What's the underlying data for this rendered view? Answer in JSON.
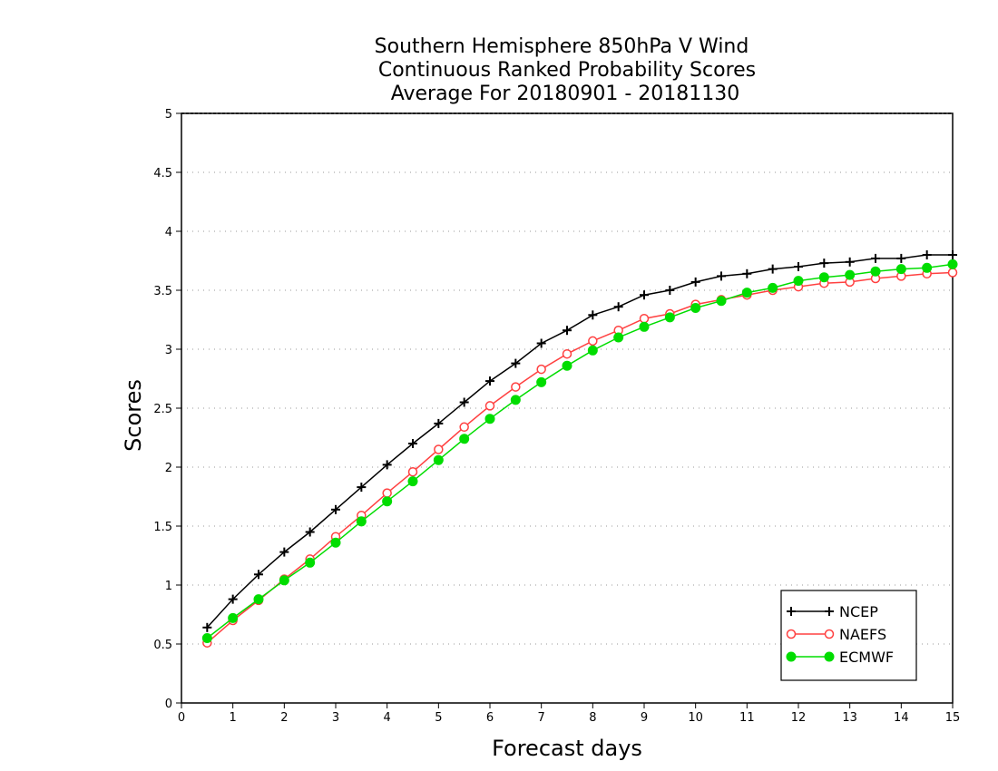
{
  "chart_data": {
    "type": "line",
    "title_lines": [
      "Southern Hemisphere 850hPa V Wind",
      "Continuous Ranked Probability Scores",
      "Average For 20180901 - 20181130"
    ],
    "xlabel": "Forecast days",
    "ylabel": "Scores",
    "xlim": [
      0,
      15
    ],
    "ylim": [
      0,
      5
    ],
    "x_ticks": [
      0,
      1,
      2,
      3,
      4,
      5,
      6,
      7,
      8,
      9,
      10,
      11,
      12,
      13,
      14,
      15
    ],
    "y_ticks": [
      0,
      0.5,
      1,
      1.5,
      2,
      2.5,
      3,
      3.5,
      4,
      4.5,
      5
    ],
    "grid": "horizontal dotted",
    "legend_position": "bottom-right",
    "x": [
      0.5,
      1,
      1.5,
      2,
      2.5,
      3,
      3.5,
      4,
      4.5,
      5,
      5.5,
      6,
      6.5,
      7,
      7.5,
      8,
      8.5,
      9,
      9.5,
      10,
      10.5,
      11,
      11.5,
      12,
      12.5,
      13,
      13.5,
      14,
      14.5,
      15
    ],
    "series": [
      {
        "name": "NCEP",
        "color": "#000000",
        "marker": "plus",
        "values": [
          0.64,
          0.88,
          1.09,
          1.28,
          1.45,
          1.64,
          1.83,
          2.02,
          2.2,
          2.37,
          2.55,
          2.73,
          2.88,
          3.05,
          3.16,
          3.29,
          3.36,
          3.46,
          3.5,
          3.57,
          3.62,
          3.64,
          3.68,
          3.7,
          3.73,
          3.74,
          3.77,
          3.77,
          3.8,
          3.8
        ]
      },
      {
        "name": "NAEFS",
        "color": "#ff4040",
        "marker": "open-circle",
        "values": [
          0.51,
          0.7,
          0.87,
          1.05,
          1.22,
          1.41,
          1.59,
          1.78,
          1.96,
          2.15,
          2.34,
          2.52,
          2.68,
          2.83,
          2.96,
          3.07,
          3.16,
          3.26,
          3.3,
          3.38,
          3.42,
          3.46,
          3.5,
          3.53,
          3.56,
          3.57,
          3.6,
          3.62,
          3.64,
          3.65
        ]
      },
      {
        "name": "ECMWF",
        "color": "#00dd00",
        "marker": "filled-circle",
        "values": [
          0.55,
          0.72,
          0.88,
          1.04,
          1.19,
          1.36,
          1.54,
          1.71,
          1.88,
          2.06,
          2.24,
          2.41,
          2.57,
          2.72,
          2.86,
          2.99,
          3.1,
          3.19,
          3.27,
          3.35,
          3.41,
          3.48,
          3.52,
          3.58,
          3.61,
          3.63,
          3.66,
          3.68,
          3.69,
          3.72
        ]
      }
    ]
  }
}
